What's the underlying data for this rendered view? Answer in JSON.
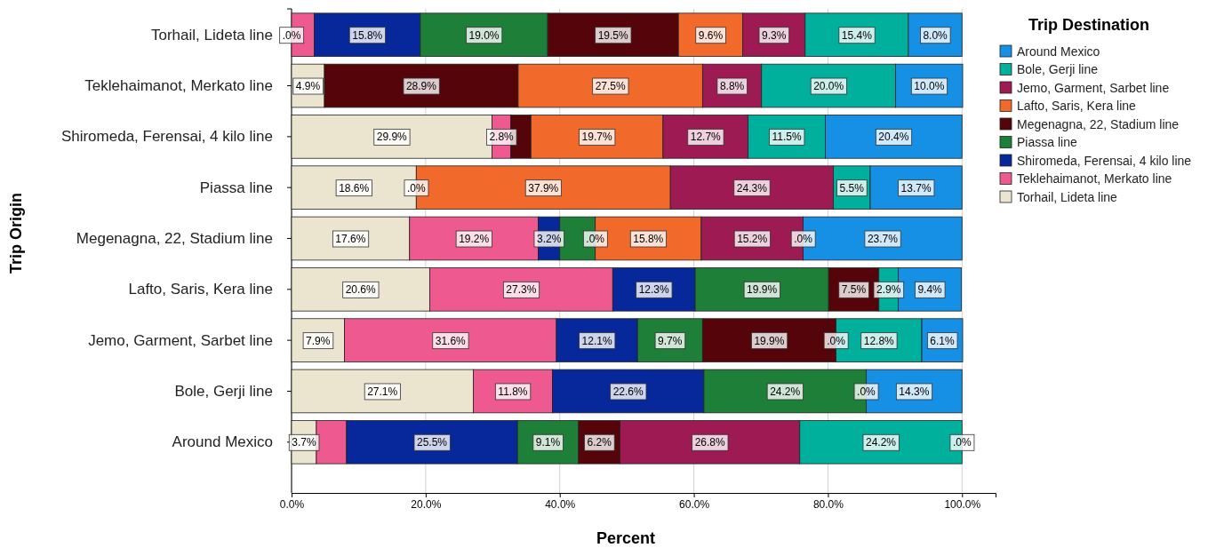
{
  "chart_data": {
    "type": "bar",
    "orientation": "horizontal",
    "stacked": true,
    "xlabel": "Percent",
    "ylabel": "Trip Origin",
    "legend_title": "Trip Destination",
    "legend": "top right",
    "grid": "x",
    "categories": [
      "Torhail, Lideta line",
      "Teklehaimanot, Merkato line",
      "Shiromeda, Ferensai, 4 kilo line",
      "Piassa line",
      "Megenagna, 22, Stadium line",
      "Lafto, Saris, Kera line",
      "Jemo, Garment, Sarbet line",
      "Bole, Gerji line",
      "Around Mexico"
    ],
    "xlim": [
      0,
      105
    ],
    "xticks": [
      {
        "value": 0,
        "label": "0.0%"
      },
      {
        "value": 20,
        "label": "20.0%"
      },
      {
        "value": 40,
        "label": "40.0%"
      },
      {
        "value": 60,
        "label": "60.0%"
      },
      {
        "value": 80,
        "label": "80.0%"
      },
      {
        "value": 100,
        "label": "100.0%"
      }
    ],
    "annotations": [
      {
        "text": ".0%",
        "x": 0,
        "y": "Torhail, Lideta line"
      },
      {
        "text": ".0%",
        "x": 18.6,
        "y": "Piassa line"
      },
      {
        "text": ".0%",
        "x": 45.3,
        "y": "Megenagna, 22, Stadium line"
      },
      {
        "text": ".0%",
        "x": 76.3,
        "y": "Megenagna, 22, Stadium line"
      },
      {
        "text": ".0%",
        "x": 81.2,
        "y": "Jemo, Garment, Sarbet line"
      },
      {
        "text": ".0%",
        "x": 85.7,
        "y": "Bole, Gerji line"
      },
      {
        "text": ".0%",
        "x": 100,
        "y": "Around Mexico"
      }
    ],
    "series": [
      {
        "name": "Torhail, Lideta line",
        "color": "#ebe5d0",
        "values": [
          0,
          4.9,
          29.9,
          18.6,
          17.6,
          20.6,
          7.9,
          27.1,
          3.7
        ],
        "value_labels": [
          null,
          "4.9%",
          "29.9%",
          "18.6%",
          "17.6%",
          "20.6%",
          "7.9%",
          "27.1%",
          "3.7%"
        ]
      },
      {
        "name": "Teklehaimanot, Merkato line",
        "color": "#ee5a8f",
        "values": [
          3.4,
          0,
          2.8,
          0,
          19.2,
          27.3,
          31.6,
          11.8,
          4.5
        ],
        "value_labels": [
          null,
          null,
          "2.8%",
          null,
          "19.2%",
          "27.3%",
          "31.6%",
          "11.8%",
          null
        ]
      },
      {
        "name": "Shiromeda, Ferensai, 4 kilo line",
        "color": "#06289a",
        "values": [
          15.8,
          0,
          0,
          0,
          3.2,
          12.3,
          12.1,
          22.6,
          25.5
        ],
        "value_labels": [
          "15.8%",
          null,
          null,
          null,
          "3.2%",
          "12.3%",
          "12.1%",
          "22.6%",
          "25.5%"
        ]
      },
      {
        "name": "Piassa line",
        "color": "#1d7f38",
        "values": [
          19.0,
          0,
          0,
          0,
          5.3,
          19.9,
          9.7,
          24.2,
          9.1
        ],
        "value_labels": [
          "19.0%",
          null,
          null,
          null,
          null,
          "19.9%",
          "9.7%",
          "24.2%",
          "9.1%"
        ]
      },
      {
        "name": "Megenagna, 22, Stadium line",
        "color": "#55040a",
        "values": [
          19.5,
          28.9,
          3.0,
          0,
          0,
          7.5,
          19.9,
          0,
          6.2
        ],
        "value_labels": [
          "19.5%",
          "28.9%",
          null,
          null,
          null,
          "7.5%",
          "19.9%",
          null,
          "6.2%"
        ]
      },
      {
        "name": "Lafto, Saris, Kera line",
        "color": "#f26a2b",
        "values": [
          9.6,
          27.5,
          19.7,
          37.9,
          15.8,
          0,
          0,
          0,
          0
        ],
        "value_labels": [
          "9.6%",
          "27.5%",
          "19.7%",
          "37.9%",
          "15.8%",
          null,
          null,
          null,
          null
        ]
      },
      {
        "name": "Jemo, Garment, Sarbet line",
        "color": "#9e1a52",
        "values": [
          9.3,
          8.8,
          12.7,
          24.3,
          15.2,
          0,
          0,
          0,
          26.8
        ],
        "value_labels": [
          "9.3%",
          "8.8%",
          "12.7%",
          "24.3%",
          "15.2%",
          null,
          null,
          null,
          "26.8%"
        ]
      },
      {
        "name": "Bole, Gerji line",
        "color": "#00b09c",
        "values": [
          15.4,
          20.0,
          11.5,
          5.5,
          0,
          2.9,
          12.8,
          0,
          24.2
        ],
        "value_labels": [
          "15.4%",
          "20.0%",
          "11.5%",
          "5.5%",
          null,
          "2.9%",
          "12.8%",
          null,
          "24.2%"
        ]
      },
      {
        "name": "Around Mexico",
        "color": "#1590e5",
        "values": [
          8.0,
          10.0,
          20.4,
          13.7,
          23.7,
          9.4,
          6.1,
          14.3,
          0
        ],
        "value_labels": [
          "8.0%",
          "10.0%",
          "20.4%",
          "13.7%",
          "23.7%",
          "9.4%",
          "6.1%",
          "14.3%",
          null
        ]
      }
    ]
  }
}
